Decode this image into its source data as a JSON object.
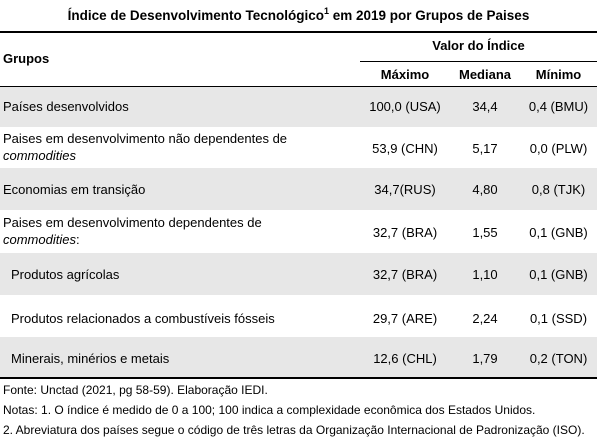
{
  "title": {
    "text": "Índice de Desenvolvimento Tecnológico",
    "sup": "1",
    "suffix": " em 2019 por Grupos de Paises"
  },
  "header": {
    "groups": "Grupos",
    "value_header": "Valor do Índice",
    "max": "Máximo",
    "median": "Mediana",
    "min": "Mínimo"
  },
  "rows": [
    {
      "label": "Países desenvolvidos",
      "label_italic": "",
      "max": "100,0 (USA)",
      "median": "34,4",
      "min": "0,4 (BMU)"
    },
    {
      "label": "Paises em desenvolvimento não dependentes de",
      "label_italic": "commodities",
      "max": "53,9 (CHN)",
      "median": "5,17",
      "min": "0,0 (PLW)"
    },
    {
      "label": "Economias em transição",
      "label_italic": "",
      "max": "34,7(RUS)",
      "median": "4,80",
      "min": "0,8  (TJK)"
    },
    {
      "label": "Paises em desenvolvimento dependentes de",
      "label_italic": "commodities",
      "label_suffix": ":",
      "max": "32,7 (BRA)",
      "median": "1,55",
      "min": "0,1 (GNB)"
    },
    {
      "label": "Produtos agrícolas",
      "label_italic": "",
      "max": "32,7 (BRA)",
      "median": "1,10",
      "min": "0,1 (GNB)"
    },
    {
      "label": "Produtos relacionados a combustíveis fósseis",
      "label_italic": "",
      "max": "29,7 (ARE)",
      "median": "2,24",
      "min": "0,1 (SSD)"
    },
    {
      "label": "Minerais, minérios e metais",
      "label_italic": "",
      "max": "12,6 (CHL)",
      "median": "1,79",
      "min": "0,2 (TON)"
    }
  ],
  "notes": [
    "Fonte: Unctad (2021, pg 58-59). Elaboração IEDI.",
    "Notas: 1. O índice é medido de 0 a 100; 100 indica a complexidade econômica dos Estados Unidos.",
    "2. Abreviatura dos países segue o código de três letras da Organização Internacional de Padronização (ISO)."
  ],
  "colors": {
    "shade": "#e7e7e7",
    "rule": "#000000"
  }
}
